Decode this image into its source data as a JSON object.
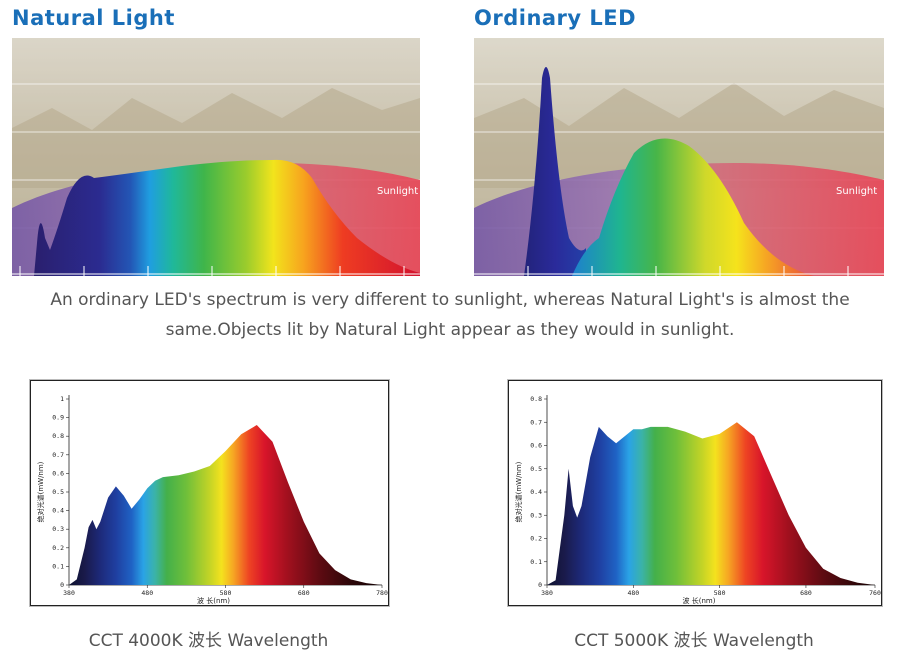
{
  "top": {
    "left_title": "Natural Light",
    "right_title": "Ordinary LED",
    "sunlight_label": "Sunlight",
    "caption_line1": "An ordinary LED's spectrum is very different to sunlight, whereas Natural  Light's is almost the",
    "caption_line2": "same.Objects lit by Natural  Light appear as they would in sunlight."
  },
  "chart_data": [
    {
      "type": "area",
      "title": "",
      "xlabel": "波 长(nm)",
      "ylabel": "绝对光谱(mW/nm)",
      "caption": "CCT 4000K 波长 Wavelength",
      "xlim": [
        380,
        780
      ],
      "ylim": [
        0,
        1
      ],
      "x_ticks": [
        "380",
        "480",
        "580",
        "680",
        "780"
      ],
      "y_ticks": [
        "0",
        "0.1",
        "0.2",
        "0.3",
        "0.4",
        "0.5",
        "0.6",
        "0.7",
        "0.8",
        "0.9",
        "1"
      ],
      "x": [
        380,
        390,
        400,
        405,
        410,
        415,
        420,
        430,
        440,
        450,
        460,
        470,
        480,
        490,
        500,
        520,
        540,
        560,
        580,
        600,
        620,
        640,
        660,
        680,
        700,
        720,
        740,
        760,
        780
      ],
      "y": [
        0.0,
        0.03,
        0.2,
        0.31,
        0.35,
        0.3,
        0.34,
        0.47,
        0.53,
        0.48,
        0.41,
        0.46,
        0.52,
        0.56,
        0.58,
        0.59,
        0.61,
        0.64,
        0.72,
        0.81,
        0.86,
        0.77,
        0.55,
        0.34,
        0.17,
        0.08,
        0.03,
        0.01,
        0.0
      ]
    },
    {
      "type": "area",
      "title": "",
      "xlabel": "波 长(nm)",
      "ylabel": "绝对光谱(mW/nm)",
      "caption": "CCT 5000K 波长 Wavelength",
      "xlim": [
        380,
        760
      ],
      "ylim": [
        0,
        0.8
      ],
      "x_ticks": [
        "380",
        "480",
        "580",
        "680",
        "760"
      ],
      "y_ticks": [
        "0",
        "0.1",
        "0.2",
        "0.3",
        "0.4",
        "0.5",
        "0.6",
        "0.7",
        "0.8"
      ],
      "x": [
        380,
        390,
        400,
        405,
        410,
        415,
        420,
        430,
        440,
        450,
        460,
        470,
        480,
        490,
        500,
        520,
        540,
        560,
        580,
        600,
        620,
        640,
        660,
        680,
        700,
        720,
        740,
        760
      ],
      "y": [
        0.0,
        0.02,
        0.3,
        0.5,
        0.34,
        0.29,
        0.34,
        0.55,
        0.68,
        0.64,
        0.61,
        0.64,
        0.67,
        0.67,
        0.68,
        0.68,
        0.66,
        0.63,
        0.65,
        0.7,
        0.64,
        0.47,
        0.3,
        0.16,
        0.07,
        0.03,
        0.01,
        0.0
      ]
    }
  ],
  "colors": {
    "title_blue": "#1a6fb8",
    "caption_gray": "#555555",
    "sunlight_red": "#e24a5a",
    "sunlight_purple": "#7a5aa8"
  }
}
